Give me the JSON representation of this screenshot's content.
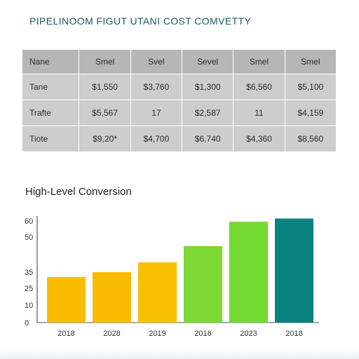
{
  "header": {
    "title": "PIPELINOOM FIGUT UTANI COST COMVETTY"
  },
  "table": {
    "columns": [
      "Nane",
      "Smel",
      "Svel",
      "Sevel",
      "Smel",
      "Smel"
    ],
    "rows": [
      [
        "Tane",
        "$1,550",
        "$3,760",
        "$1,300",
        "$6,560",
        "$5,100"
      ],
      [
        "Trafte",
        "$5,567",
        "17",
        "$2,587",
        "11",
        "$4,159"
      ],
      [
        "Tiote",
        "$9,20*",
        "$4,700",
        "$6,740",
        "$4,360",
        "$8,560"
      ]
    ]
  },
  "chart_title": "High-Level Conversion",
  "chart_data": {
    "type": "bar",
    "title": "High-Level Conversion",
    "categories": [
      "2018",
      "2028",
      "2019",
      "2016",
      "2023",
      "2018"
    ],
    "values": [
      28,
      31,
      37,
      47,
      62,
      64
    ],
    "colors": [
      "#f9bc00",
      "#f9bc00",
      "#f8c000",
      "#7ed934",
      "#74da32",
      "#0a8280"
    ],
    "yticks": [
      "0",
      "10",
      "25",
      "35",
      "50",
      "60"
    ],
    "ylim": [
      0,
      69
    ],
    "xlabel": "",
    "ylabel": "",
    "grid": false
  }
}
